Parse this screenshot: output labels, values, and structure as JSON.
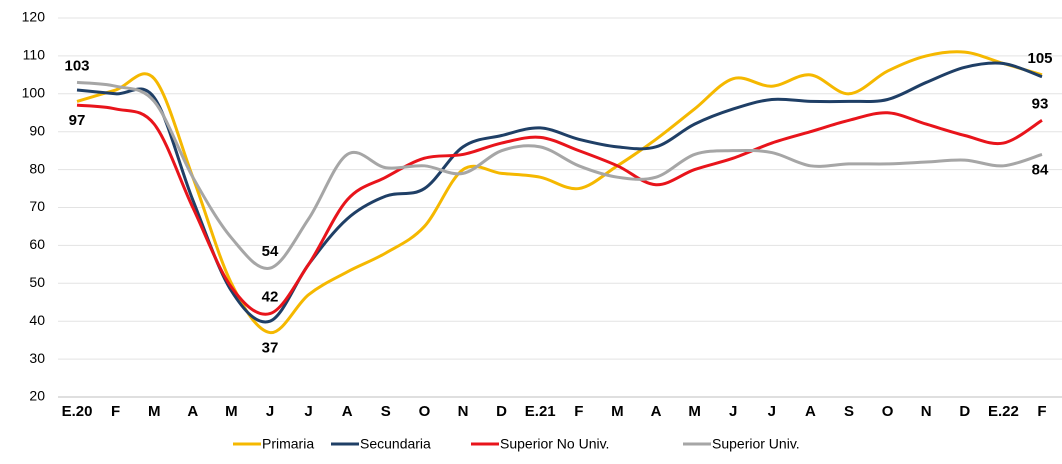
{
  "chart_data": {
    "type": "line",
    "categories": [
      "E.20",
      "F",
      "M",
      "A",
      "M",
      "J",
      "J",
      "A",
      "S",
      "O",
      "N",
      "D",
      "E.21",
      "F",
      "M",
      "A",
      "M",
      "J",
      "J",
      "A",
      "S",
      "O",
      "N",
      "D",
      "E.22",
      "F"
    ],
    "ylim": [
      20,
      120
    ],
    "yticks": [
      20,
      30,
      40,
      50,
      60,
      70,
      80,
      90,
      100,
      110,
      120
    ],
    "grid": true,
    "legend": "bottom",
    "series": [
      {
        "name": "Primaria",
        "color": "#f5b800",
        "values": [
          98,
          101,
          104,
          78,
          50,
          37,
          47,
          53,
          58,
          65,
          80,
          79,
          78,
          75,
          81,
          88,
          96,
          104,
          102,
          105,
          100,
          106,
          110,
          111,
          108,
          105
        ],
        "value_labels": [
          null,
          null,
          null,
          null,
          null,
          "37",
          null,
          null,
          null,
          null,
          null,
          null,
          null,
          null,
          null,
          null,
          null,
          null,
          null,
          null,
          null,
          null,
          null,
          null,
          null,
          "105"
        ]
      },
      {
        "name": "Secundaria",
        "color": "#1f3f66",
        "values": [
          101,
          100,
          99,
          72,
          48,
          40,
          55,
          67,
          73,
          75,
          86,
          89,
          91,
          88,
          86,
          86,
          92,
          96,
          98.5,
          98,
          98,
          98.5,
          103,
          107,
          108,
          104.5
        ]
      },
      {
        "name": "Superior No Univ.",
        "color": "#e8141b",
        "values": [
          97,
          96,
          92,
          70,
          49,
          42,
          55,
          72,
          78,
          83,
          84,
          87,
          88.5,
          85,
          81,
          76,
          80,
          83,
          87,
          90,
          93,
          95,
          92,
          89,
          87,
          93
        ],
        "value_labels": [
          "97",
          null,
          null,
          null,
          null,
          "42",
          null,
          null,
          null,
          null,
          null,
          null,
          null,
          null,
          null,
          null,
          null,
          null,
          null,
          null,
          null,
          null,
          null,
          null,
          null,
          "93"
        ]
      },
      {
        "name": "Superior Univ.",
        "color": "#a6a6a6",
        "values": [
          103,
          102,
          98,
          78,
          62,
          54,
          67,
          84,
          80.5,
          81,
          79,
          85,
          86,
          81,
          78,
          78,
          84,
          85,
          84.5,
          81,
          81.5,
          81.5,
          82,
          82.5,
          81,
          84
        ],
        "value_labels": [
          "103",
          null,
          null,
          null,
          null,
          "54",
          null,
          null,
          null,
          null,
          null,
          null,
          null,
          null,
          null,
          null,
          null,
          null,
          null,
          null,
          null,
          null,
          null,
          null,
          null,
          "84"
        ]
      }
    ]
  }
}
